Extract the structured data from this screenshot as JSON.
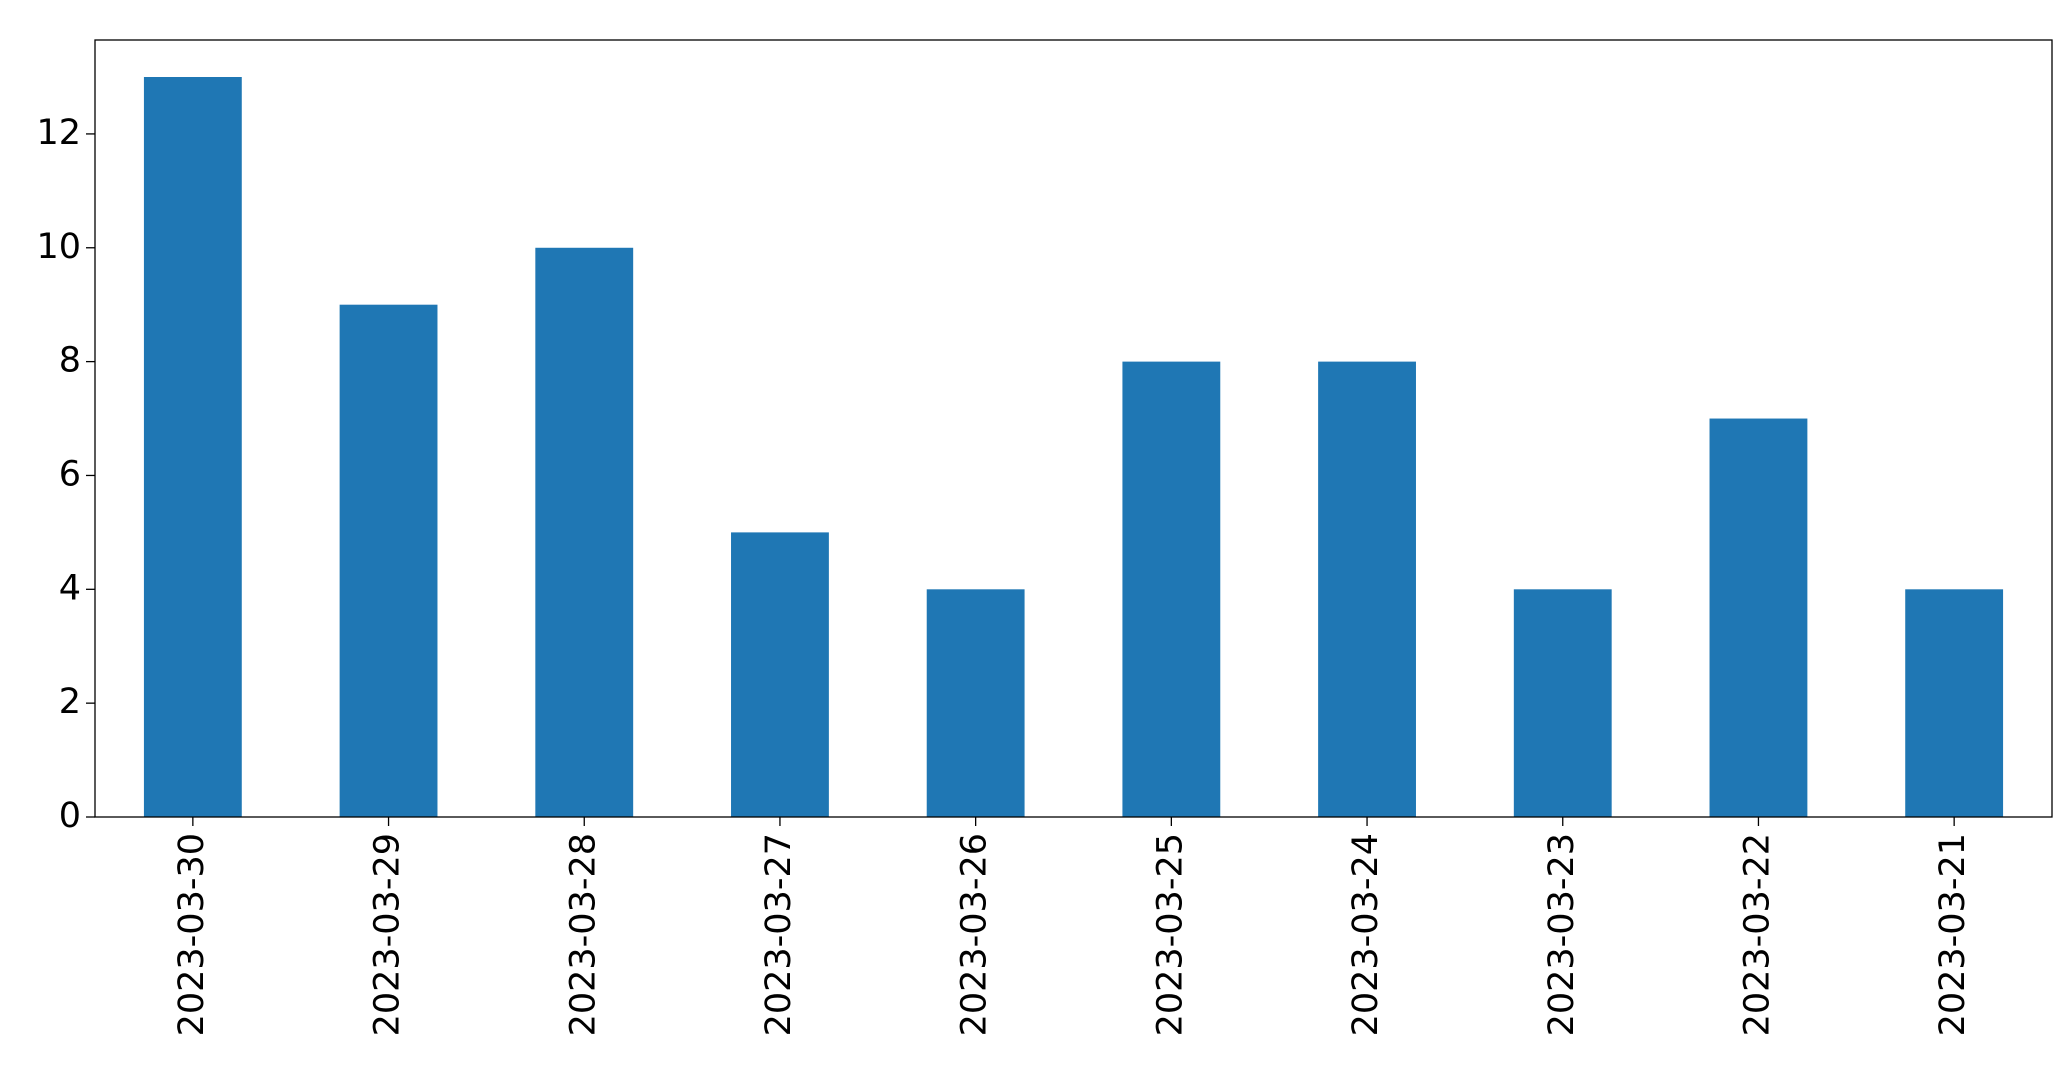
{
  "chart_data": {
    "type": "bar",
    "categories": [
      "2023-03-30",
      "2023-03-29",
      "2023-03-28",
      "2023-03-27",
      "2023-03-26",
      "2023-03-25",
      "2023-03-24",
      "2023-03-23",
      "2023-03-22",
      "2023-03-21"
    ],
    "values": [
      13,
      9,
      10,
      5,
      4,
      8,
      8,
      4,
      7,
      4
    ],
    "color": "#1f77b4",
    "ylim": [
      0,
      13.65
    ],
    "yticks": [
      0,
      2,
      4,
      6,
      8,
      10,
      12
    ],
    "grid": false
  }
}
